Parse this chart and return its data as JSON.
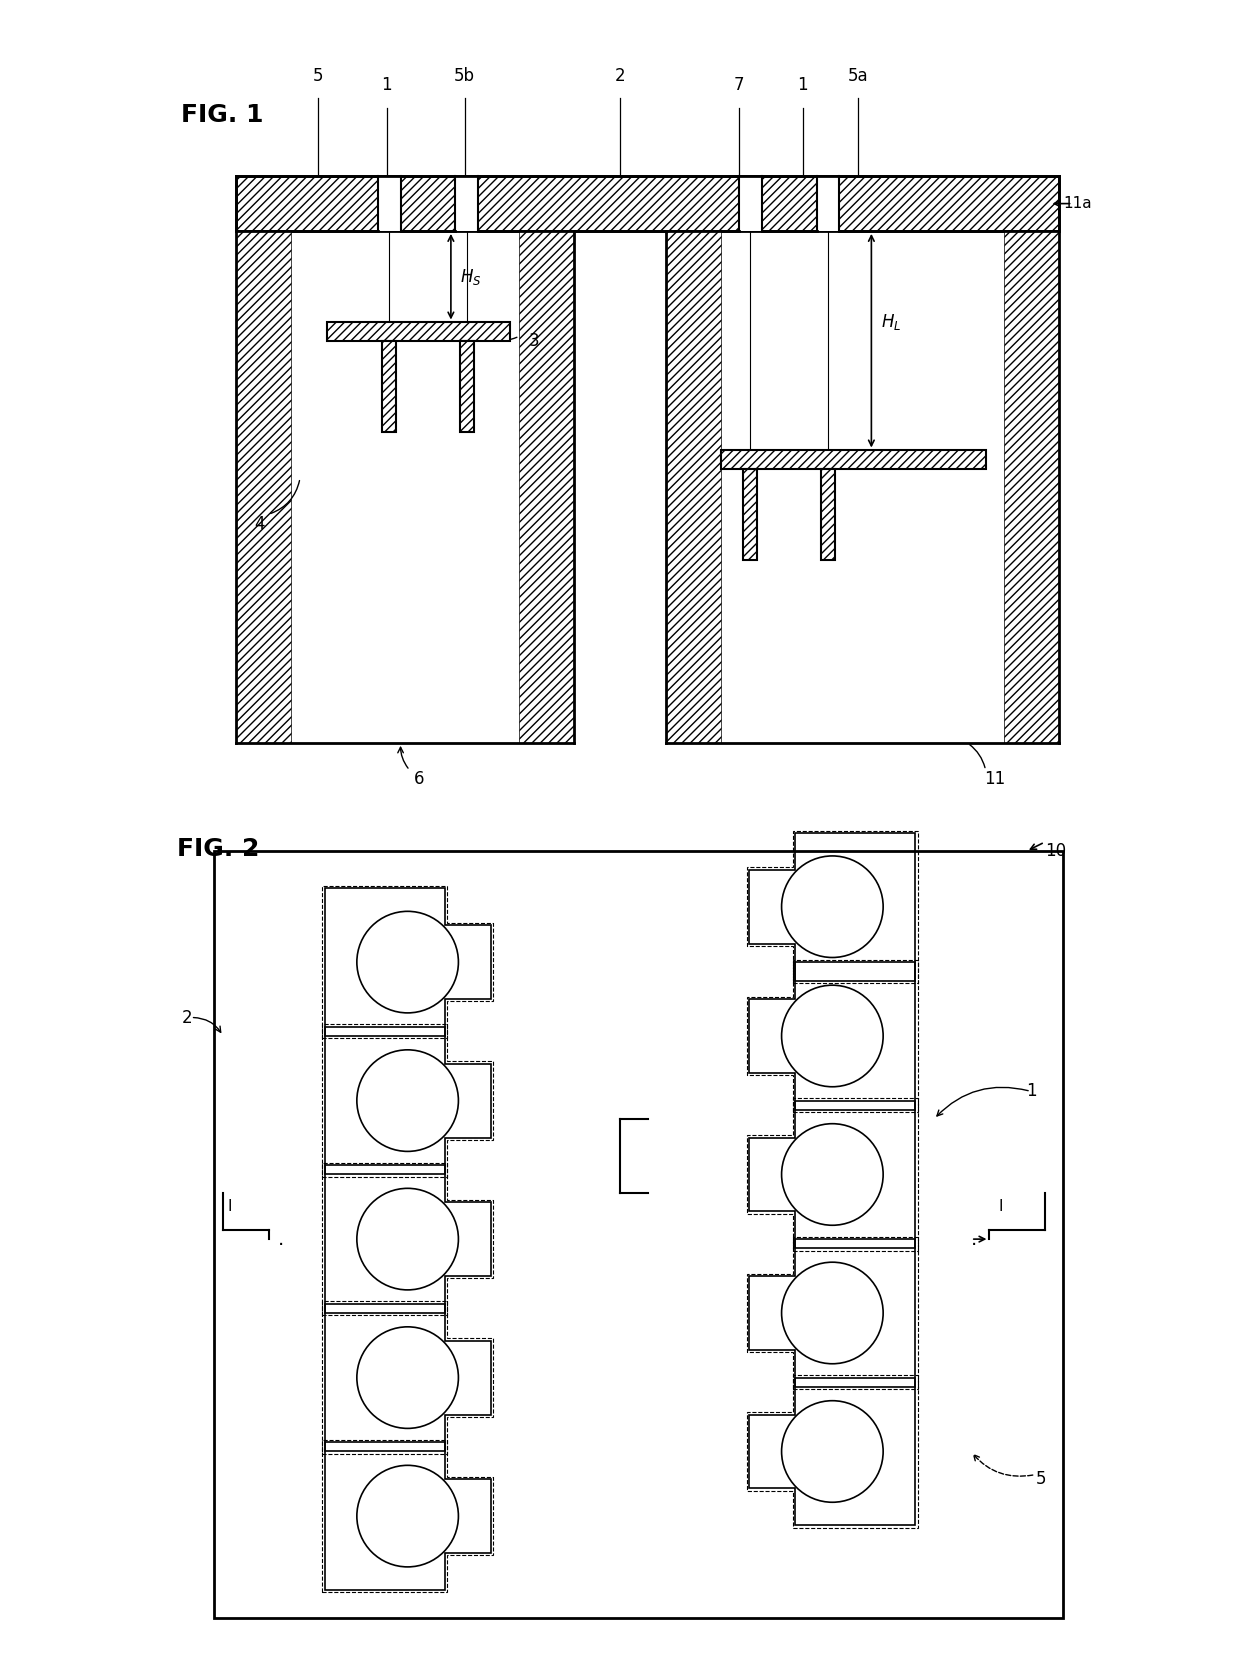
{
  "fig1_title": "FIG. 1",
  "fig2_title": "FIG. 2",
  "background_color": "#ffffff",
  "line_color": "#000000",
  "hatch_color": "#000000",
  "fig1_labels": [
    "5",
    "1",
    "5b",
    "2",
    "7",
    "1",
    "5a",
    "11a",
    "3",
    "4",
    "6",
    "11",
    "Hs",
    "HL"
  ],
  "fig2_labels": [
    "2",
    "1",
    "5",
    "10",
    "I"
  ],
  "dpi": 100,
  "figsize": [
    12.4,
    16.62
  ]
}
